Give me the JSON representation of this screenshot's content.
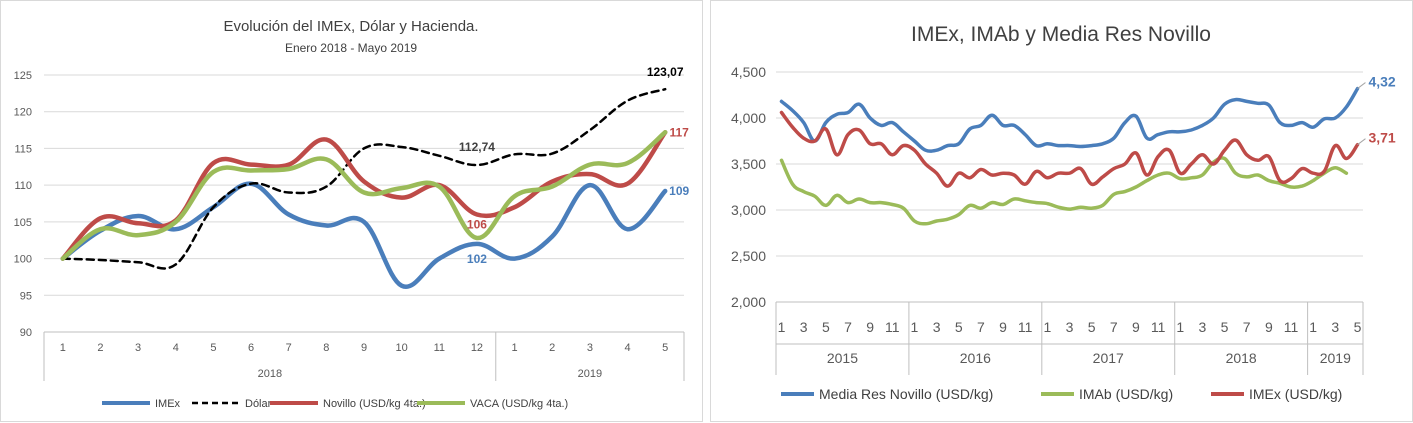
{
  "colors": {
    "blue": "#4a7ebb",
    "red": "#be4b48",
    "green": "#9bbb59",
    "black": "#000000",
    "grid": "#d9d9d9",
    "axis": "#595959"
  },
  "chart_data": [
    {
      "type": "line",
      "title": "Evolución del IMEx, Dólar y Hacienda.",
      "subtitle": "Enero 2018 - Mayo 2019",
      "categories": [
        "1",
        "2",
        "3",
        "4",
        "5",
        "6",
        "7",
        "8",
        "9",
        "10",
        "11",
        "12",
        "1",
        "2",
        "3",
        "4",
        "5"
      ],
      "category_groups": [
        {
          "label": "2018",
          "count": 12
        },
        {
          "label": "2019",
          "count": 5
        }
      ],
      "ylim": [
        90,
        125
      ],
      "yticks": [
        "90",
        "95",
        "100",
        "105",
        "110",
        "115",
        "120",
        "125"
      ],
      "grid": true,
      "legend_position": "bottom",
      "series": [
        {
          "name": "IMEx",
          "color": "#4a7ebb",
          "dashed": false,
          "values": [
            100,
            103.8,
            105.8,
            104,
            107,
            110.2,
            106,
            104.5,
            105,
            96.3,
            100,
            102,
            100,
            103,
            110,
            104,
            109.2
          ]
        },
        {
          "name": "Dólar",
          "color": "#000000",
          "dashed": true,
          "values": [
            100,
            99.8,
            99.5,
            99.2,
            107,
            110.2,
            109,
            109.8,
            115,
            115.2,
            114,
            112.74,
            114.2,
            114.3,
            117.5,
            121.5,
            123.07
          ]
        },
        {
          "name": "Novillo (USD/kg 4ta.)",
          "color": "#be4b48",
          "dashed": false,
          "values": [
            100,
            105.5,
            104.8,
            105.2,
            113,
            112.8,
            112.8,
            116.2,
            110.5,
            108.3,
            110,
            106,
            107,
            110.5,
            111.5,
            110.2,
            117.2
          ]
        },
        {
          "name": "VACA (USD/kg 4ta.)",
          "color": "#9bbb59",
          "dashed": false,
          "values": [
            100,
            104,
            103.2,
            105,
            111.8,
            112,
            112.2,
            113.5,
            109,
            109.6,
            109.8,
            102.8,
            108.5,
            109.8,
            112.8,
            113,
            117.2
          ]
        }
      ],
      "annotations": [
        {
          "text": "123,07",
          "series": 1,
          "index": 16,
          "color": "#000000"
        },
        {
          "text": "112,74",
          "series": 1,
          "index": 11,
          "color": "#404040"
        },
        {
          "text": "117",
          "series": 2,
          "index": 16,
          "color": "#be4b48"
        },
        {
          "text": "106",
          "series": 2,
          "index": 11,
          "color": "#be4b48"
        },
        {
          "text": "109",
          "series": 0,
          "index": 16,
          "color": "#4a7ebb"
        },
        {
          "text": "102",
          "series": 0,
          "index": 11,
          "color": "#4a7ebb"
        }
      ]
    },
    {
      "type": "line",
      "title": "IMEx, IMAb y Media Res Novillo",
      "ylim": [
        2000,
        4500
      ],
      "yticks": [
        "2,000",
        "2,500",
        "3,000",
        "3,500",
        "4,000",
        "4,500"
      ],
      "x_tick_labels": [
        "1",
        "3",
        "5",
        "7",
        "9",
        "11",
        "1",
        "3",
        "5",
        "7",
        "9",
        "11",
        "1",
        "3",
        "5",
        "7",
        "9",
        "11",
        "1",
        "3",
        "5",
        "7",
        "9",
        "11",
        "1",
        "3",
        "5"
      ],
      "n_points": 53,
      "year_groups": [
        {
          "label": "2015",
          "count": 12
        },
        {
          "label": "2016",
          "count": 12
        },
        {
          "label": "2017",
          "count": 12
        },
        {
          "label": "2018",
          "count": 12
        },
        {
          "label": "2019",
          "count": 5
        }
      ],
      "grid": true,
      "legend_position": "bottom",
      "series": [
        {
          "name": "Media Res Novillo (USD/kg)",
          "color": "#4a7ebb",
          "values": [
            4180,
            4080,
            3950,
            3750,
            3950,
            4040,
            4060,
            4150,
            4000,
            3920,
            3950,
            3850,
            3750,
            3650,
            3650,
            3700,
            3720,
            3880,
            3920,
            4030,
            3920,
            3920,
            3820,
            3700,
            3720,
            3700,
            3700,
            3690,
            3700,
            3720,
            3780,
            3950,
            4020,
            3780,
            3820,
            3850,
            3850,
            3870,
            3920,
            4000,
            4150,
            4200,
            4180,
            4160,
            4140,
            3950,
            3920,
            3950,
            3900,
            3990,
            4000,
            4120,
            4320
          ]
        },
        {
          "name": "IMAb (USD/kg)",
          "color": "#9bbb59",
          "values": [
            3540,
            3280,
            3200,
            3150,
            3050,
            3160,
            3080,
            3120,
            3080,
            3080,
            3060,
            3020,
            2880,
            2850,
            2880,
            2900,
            2950,
            3050,
            3020,
            3080,
            3060,
            3120,
            3100,
            3080,
            3070,
            3030,
            3010,
            3030,
            3020,
            3050,
            3170,
            3200,
            3250,
            3320,
            3380,
            3400,
            3340,
            3350,
            3380,
            3520,
            3560,
            3400,
            3360,
            3380,
            3320,
            3290,
            3250,
            3260,
            3320,
            3400,
            3460,
            3400,
            null
          ]
        },
        {
          "name": "IMEx (USD/kg)",
          "color": "#be4b48",
          "values": [
            4060,
            3900,
            3780,
            3750,
            3880,
            3600,
            3820,
            3870,
            3720,
            3720,
            3600,
            3700,
            3650,
            3500,
            3400,
            3260,
            3400,
            3350,
            3440,
            3380,
            3400,
            3380,
            3280,
            3420,
            3350,
            3400,
            3400,
            3450,
            3280,
            3360,
            3450,
            3500,
            3620,
            3380,
            3580,
            3650,
            3400,
            3500,
            3600,
            3500,
            3650,
            3760,
            3600,
            3540,
            3580,
            3320,
            3340,
            3450,
            3400,
            3420,
            3700,
            3560,
            3710
          ]
        }
      ],
      "annotations": [
        {
          "text": "4,32",
          "series": 0,
          "color": "#4a7ebb"
        },
        {
          "text": "3,71",
          "series": 2,
          "color": "#be4b48"
        }
      ]
    }
  ]
}
